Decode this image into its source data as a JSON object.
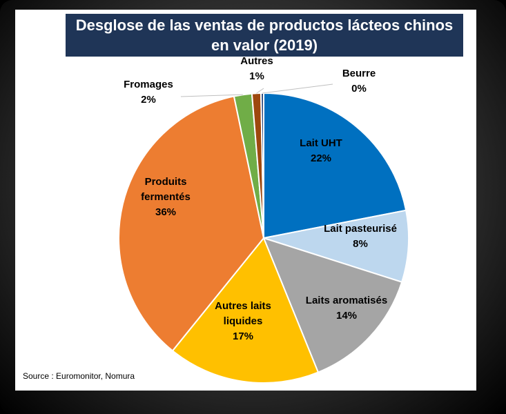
{
  "chart_data": {
    "type": "pie",
    "title_line1": "Desglose de las ventas de productos lácteos chinos",
    "title_line2": "en valor (2019)",
    "source": "Source : Euromonitor, Nomura",
    "slices": [
      {
        "label_lines": [
          "Lait UHT"
        ],
        "pct_text": "22%",
        "value": 22,
        "color": "#0070c0"
      },
      {
        "label_lines": [
          "Lait pasteurisé"
        ],
        "pct_text": "8%",
        "value": 8,
        "color": "#bdd7ee"
      },
      {
        "label_lines": [
          "Laits aromatisés"
        ],
        "pct_text": "14%",
        "value": 14,
        "color": "#a5a5a5"
      },
      {
        "label_lines": [
          "Autres laits",
          "liquides"
        ],
        "pct_text": "17%",
        "value": 17,
        "color": "#ffc000"
      },
      {
        "label_lines": [
          "Produits",
          "fermentés"
        ],
        "pct_text": "36%",
        "value": 36,
        "color": "#ed7d31"
      },
      {
        "label_lines": [
          "Fromages"
        ],
        "pct_text": "2%",
        "value": 2,
        "color": "#70ad47"
      },
      {
        "label_lines": [
          "Autres"
        ],
        "pct_text": "1%",
        "value": 1,
        "color": "#9e480e"
      },
      {
        "label_lines": [
          "Beurre"
        ],
        "pct_text": "0%",
        "value": 0.3,
        "color": "#264478"
      }
    ]
  }
}
